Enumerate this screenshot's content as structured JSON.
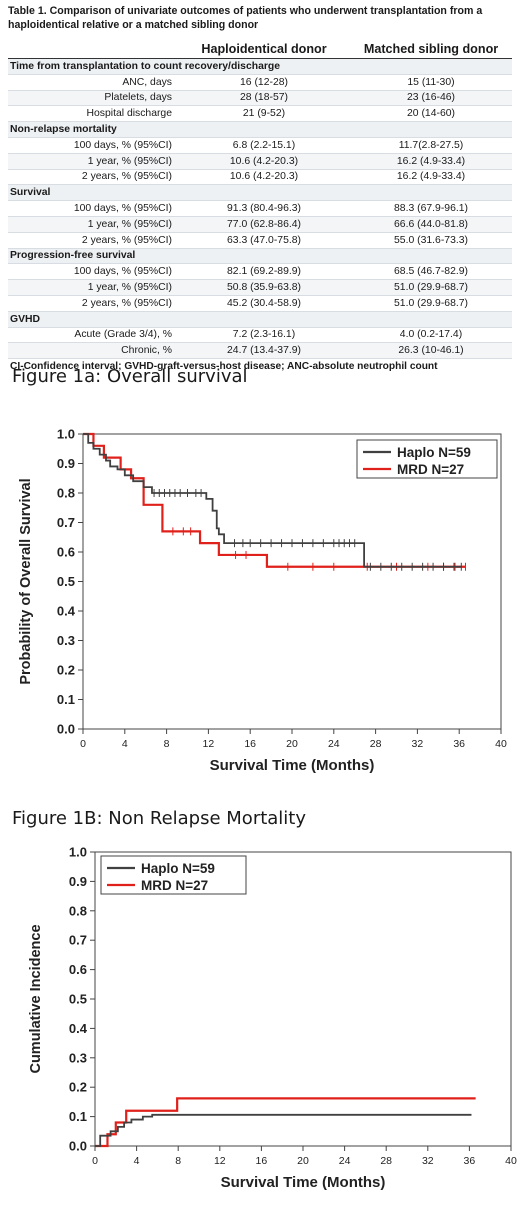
{
  "table": {
    "caption": "Table 1. Comparison of univariate outcomes of patients who underwent transplantation from a haploidentical relative or a matched sibling donor",
    "columns": [
      "",
      "Haploidentical donor",
      "Matched sibling donor"
    ],
    "rows": [
      {
        "section": "Time from transplantation to count recovery/discharge"
      },
      {
        "label": "ANC, days",
        "haplo": "16 (12-28)",
        "mrd": "15 (11-30)"
      },
      {
        "label": "Platelets, days",
        "haplo": "28 (18-57)",
        "mrd": "23 (16-46)"
      },
      {
        "label": "Hospital discharge",
        "haplo": "21 (9-52)",
        "mrd": "20 (14-60)"
      },
      {
        "section": "Non-relapse mortality"
      },
      {
        "label": "100 days, % (95%CI)",
        "haplo": "6.8 (2.2-15.1)",
        "mrd": "11.7(2.8-27.5)"
      },
      {
        "label": "1 year, % (95%CI)",
        "haplo": "10.6 (4.2-20.3)",
        "mrd": "16.2 (4.9-33.4)"
      },
      {
        "label": "2 years, % (95%CI)",
        "haplo": "10.6 (4.2-20.3)",
        "mrd": "16.2 (4.9-33.4)"
      },
      {
        "section": "Survival"
      },
      {
        "label": "100 days, % (95%CI)",
        "haplo": "91.3 (80.4-96.3)",
        "mrd": "88.3 (67.9-96.1)"
      },
      {
        "label": "1 year, % (95%CI)",
        "haplo": "77.0 (62.8-86.4)",
        "mrd": "66.6 (44.0-81.8)"
      },
      {
        "label": "2 years, % (95%CI)",
        "haplo": "63.3 (47.0-75.8)",
        "mrd": "55.0 (31.6-73.3)"
      },
      {
        "section": "Progression-free survival"
      },
      {
        "label": "100 days, % (95%CI)",
        "haplo": "82.1 (69.2-89.9)",
        "mrd": "68.5 (46.7-82.9)"
      },
      {
        "label": "1 year, % (95%CI)",
        "haplo": "50.8 (35.9-63.8)",
        "mrd": "51.0 (29.9-68.7)"
      },
      {
        "label": "2 years, % (95%CI)",
        "haplo": "45.2 (30.4-58.9)",
        "mrd": "51.0 (29.9-68.7)"
      },
      {
        "section": "GVHD"
      },
      {
        "label": "Acute (Grade 3/4), %",
        "haplo": "7.2 (2.3-16.1)",
        "mrd": "4.0 (0.2-17.4)"
      },
      {
        "label": "Chronic, %",
        "haplo": "24.7 (13.4-37.9)",
        "mrd": "26.3 (10-46.1)"
      }
    ],
    "footnote": "CI-Confidence interval; GVHD-graft-versus-host disease; ANC-absolute neutrophil count"
  },
  "colors": {
    "haplo": "#404040",
    "mrd": "#e0201b"
  },
  "chart_data": [
    {
      "type": "line",
      "figure_title": "Figure 1a: Overall survival",
      "xlabel": "Survival Time (Months)",
      "ylabel": "Probability of Overall Survival",
      "xlim": [
        0,
        40
      ],
      "ylim": [
        0,
        1
      ],
      "xticks": [
        0,
        4,
        8,
        12,
        16,
        20,
        24,
        28,
        32,
        36,
        40
      ],
      "yticks": [
        0.0,
        0.1,
        0.2,
        0.3,
        0.4,
        0.5,
        0.6,
        0.7,
        0.8,
        0.9,
        1.0
      ],
      "legend_position": "top-right",
      "series": [
        {
          "name": "Haplo N=59",
          "step": true,
          "x": [
            0,
            0.5,
            1.0,
            1.6,
            2.2,
            2.6,
            3.3,
            4.0,
            4.8,
            5.8,
            6.6,
            11.8,
            12.4,
            12.8,
            13.0,
            13.5,
            26.9,
            36.2
          ],
          "y": [
            1.0,
            0.97,
            0.95,
            0.93,
            0.91,
            0.89,
            0.88,
            0.86,
            0.84,
            0.82,
            0.8,
            0.78,
            0.74,
            0.68,
            0.66,
            0.63,
            0.55,
            0.55
          ],
          "censor_x": [
            6.8,
            7.3,
            7.8,
            8.3,
            8.8,
            9.3,
            10.0,
            10.8,
            11.3,
            14.5,
            15.3,
            16.0,
            17.0,
            18.0,
            19.0,
            20.0,
            21.0,
            22.0,
            23.0,
            24.0,
            24.5,
            25.0,
            25.5,
            26.0,
            27.5,
            28.5,
            29.5,
            30.5,
            31.5,
            32.5,
            33.5,
            34.5,
            35.5,
            36.2
          ]
        },
        {
          "name": "MRD N=27",
          "step": true,
          "x": [
            0,
            1.0,
            2.0,
            3.6,
            4.6,
            5.8,
            7.6,
            11.2,
            13.0,
            17.6,
            36.6
          ],
          "y": [
            1.0,
            0.96,
            0.92,
            0.88,
            0.85,
            0.76,
            0.67,
            0.63,
            0.59,
            0.55,
            0.55
          ],
          "censor_x": [
            8.6,
            9.6,
            10.3,
            14.6,
            15.6,
            19.6,
            22.0,
            24.0,
            27.2,
            30.0,
            33.0,
            34.5,
            35.6,
            36.6
          ]
        }
      ]
    },
    {
      "type": "line",
      "figure_title": "Figure 1B: Non Relapse Mortality",
      "xlabel": "Survival Time (Months)",
      "ylabel": "Cumulative Incidence",
      "xlim": [
        0,
        40
      ],
      "ylim": [
        0,
        1
      ],
      "xticks": [
        0,
        4,
        8,
        12,
        16,
        20,
        24,
        28,
        32,
        36,
        40
      ],
      "yticks": [
        0.0,
        0.1,
        0.2,
        0.3,
        0.4,
        0.5,
        0.6,
        0.7,
        0.8,
        0.9,
        1.0
      ],
      "legend_position": "top-left",
      "series": [
        {
          "name": "Haplo N=59",
          "step": true,
          "x": [
            0,
            0.5,
            1.5,
            2.2,
            2.8,
            3.5,
            4.6,
            5.5,
            36.2
          ],
          "y": [
            0,
            0.035,
            0.05,
            0.065,
            0.08,
            0.09,
            0.1,
            0.106,
            0.106
          ]
        },
        {
          "name": "MRD N=27",
          "step": true,
          "x": [
            0,
            1.2,
            2.0,
            3.0,
            7.9,
            36.6
          ],
          "y": [
            0,
            0.04,
            0.08,
            0.12,
            0.162,
            0.162
          ]
        }
      ]
    }
  ]
}
